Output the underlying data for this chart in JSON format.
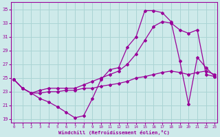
{
  "xlabel": "Windchill (Refroidissement éolien,°C)",
  "bg_color": "#ceeaea",
  "grid_color": "#aad4d4",
  "line_color": "#990099",
  "line1_x": [
    0,
    1,
    2,
    3,
    4,
    5,
    6,
    7,
    8,
    9,
    10,
    11,
    12,
    13,
    14,
    15,
    16,
    17,
    18,
    19,
    20,
    21,
    22,
    23
  ],
  "line1_y": [
    24.8,
    23.5,
    22.8,
    22.0,
    21.5,
    20.8,
    20.0,
    19.2,
    19.5,
    22.0,
    24.8,
    26.2,
    26.5,
    29.5,
    31.0,
    34.8,
    34.8,
    34.5,
    33.2,
    27.5,
    21.2,
    28.0,
    26.5,
    25.2
  ],
  "line2_x": [
    0,
    1,
    2,
    3,
    4,
    5,
    6,
    7,
    8,
    9,
    10,
    11,
    12,
    13,
    14,
    15,
    16,
    17,
    18,
    19,
    20,
    21,
    22,
    23
  ],
  "line2_y": [
    24.8,
    23.5,
    22.8,
    23.2,
    23.5,
    23.5,
    23.5,
    23.5,
    24.0,
    24.5,
    25.0,
    25.5,
    26.0,
    27.0,
    28.5,
    30.5,
    32.5,
    33.2,
    33.0,
    32.0,
    31.5,
    32.0,
    25.5,
    25.2
  ],
  "line3_x": [
    0,
    1,
    2,
    3,
    4,
    5,
    6,
    7,
    8,
    9,
    10,
    11,
    12,
    13,
    14,
    15,
    16,
    17,
    18,
    19,
    20,
    21,
    22,
    23
  ],
  "line3_y": [
    24.8,
    23.5,
    22.8,
    22.8,
    23.0,
    23.0,
    23.2,
    23.2,
    23.5,
    23.5,
    23.8,
    24.0,
    24.2,
    24.5,
    25.0,
    25.2,
    25.5,
    25.8,
    26.0,
    25.8,
    25.5,
    25.8,
    26.0,
    25.5
  ],
  "ylim": [
    18.5,
    36.0
  ],
  "xlim": [
    -0.3,
    23.3
  ],
  "yticks": [
    19,
    21,
    23,
    25,
    27,
    29,
    31,
    33,
    35
  ],
  "xticks": [
    0,
    1,
    2,
    3,
    4,
    5,
    6,
    7,
    8,
    9,
    10,
    11,
    12,
    13,
    14,
    15,
    16,
    17,
    18,
    19,
    20,
    21,
    22,
    23
  ]
}
